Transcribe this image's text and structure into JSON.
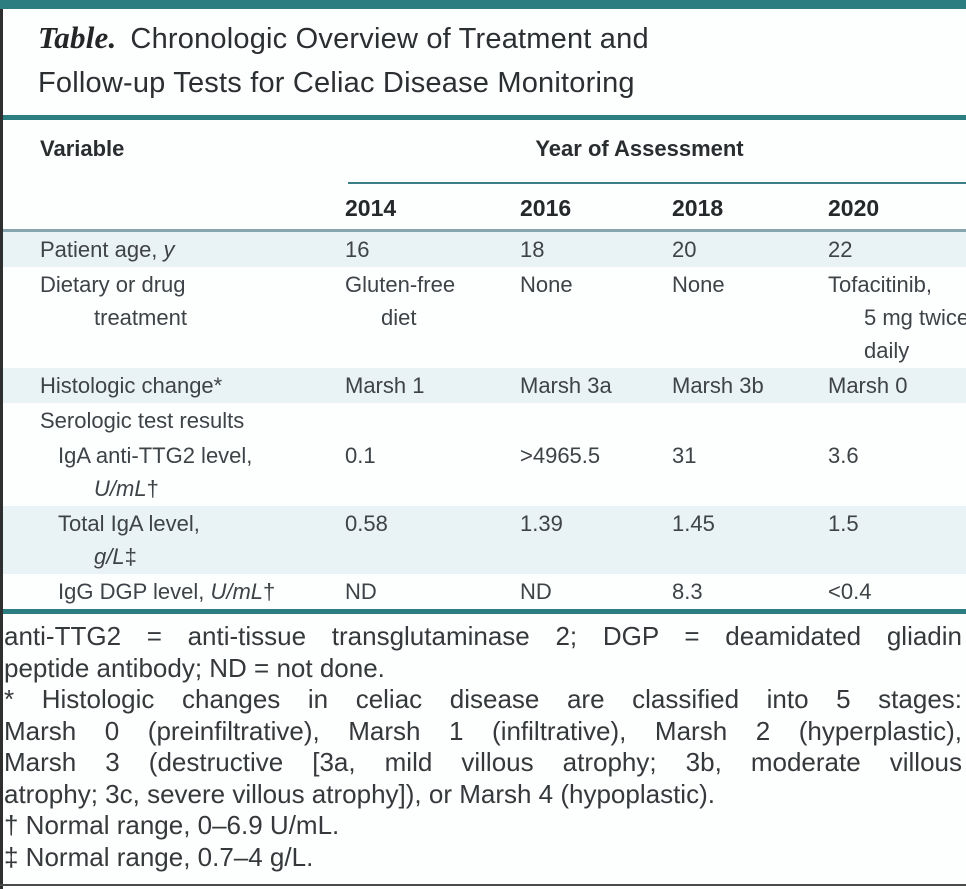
{
  "title": {
    "prefix": "Table.",
    "line1": "Chronologic Overview of Treatment and",
    "line2": "Follow-up Tests for Celiac Disease Monitoring"
  },
  "table": {
    "header": {
      "variable": "Variable",
      "year_group": "Year of Assessment",
      "years": [
        "2014",
        "2016",
        "2018",
        "2020"
      ]
    },
    "rows": [
      {
        "shaded": true,
        "label": [
          {
            "parts": [
              {
                "t": "Patient age, "
              },
              {
                "t": "y",
                "it": true
              }
            ],
            "ind": 0
          }
        ],
        "cells": [
          [
            {
              "t": "16"
            }
          ],
          [
            {
              "t": "18"
            }
          ],
          [
            {
              "t": "20"
            }
          ],
          [
            {
              "t": "22"
            }
          ]
        ]
      },
      {
        "shaded": false,
        "label": [
          {
            "t": "Dietary or drug",
            "ind": 0
          },
          {
            "t": "treatment",
            "ind": 2
          }
        ],
        "cells": [
          [
            {
              "t": "Gluten-free"
            },
            {
              "t": "diet",
              "ind": 1
            }
          ],
          [
            {
              "t": "None"
            }
          ],
          [
            {
              "t": "None"
            }
          ],
          [
            {
              "t": "Tofacitinib,"
            },
            {
              "t": "5 mg twice",
              "ind": 1
            },
            {
              "t": "daily",
              "ind": 1
            }
          ]
        ]
      },
      {
        "shaded": true,
        "label": [
          {
            "t": "Histologic change*",
            "ind": 0
          }
        ],
        "cells": [
          [
            {
              "t": "Marsh 1"
            }
          ],
          [
            {
              "t": "Marsh 3a"
            }
          ],
          [
            {
              "t": "Marsh 3b"
            }
          ],
          [
            {
              "t": "Marsh 0"
            }
          ]
        ]
      },
      {
        "shaded": false,
        "label": [
          {
            "t": "Serologic test results",
            "ind": 0
          }
        ],
        "cells": [
          [],
          [],
          [],
          []
        ]
      },
      {
        "shaded": false,
        "label": [
          {
            "t": "IgA anti-TTG2 level,",
            "ind": 1
          },
          {
            "parts": [
              {
                "t": "U/mL",
                "it": true
              },
              {
                "t": "†"
              }
            ],
            "ind": 2
          }
        ],
        "cells": [
          [
            {
              "t": "0.1"
            }
          ],
          [
            {
              "t": ">4965.5"
            }
          ],
          [
            {
              "t": "31"
            }
          ],
          [
            {
              "t": "3.6"
            }
          ]
        ]
      },
      {
        "shaded": true,
        "label": [
          {
            "t": "Total IgA level,",
            "ind": 1
          },
          {
            "parts": [
              {
                "t": "g/L",
                "it": true
              },
              {
                "t": "‡"
              }
            ],
            "ind": 2
          }
        ],
        "cells": [
          [
            {
              "t": "0.58"
            }
          ],
          [
            {
              "t": "1.39"
            }
          ],
          [
            {
              "t": "1.45"
            }
          ],
          [
            {
              "t": "1.5"
            }
          ]
        ]
      },
      {
        "shaded": false,
        "label": [
          {
            "parts": [
              {
                "t": "IgG DGP level, "
              },
              {
                "t": "U/mL",
                "it": true
              },
              {
                "t": "†"
              }
            ],
            "ind": 1
          }
        ],
        "cells": [
          [
            {
              "t": "ND"
            }
          ],
          [
            {
              "t": "ND"
            }
          ],
          [
            {
              "t": "8.3"
            }
          ],
          [
            {
              "t": "<0.4"
            }
          ]
        ]
      }
    ]
  },
  "footnotes": {
    "lines": [
      {
        "t": "anti-TTG2 = anti-tissue transglutaminase 2; DGP = deamidated gliadin",
        "just": true
      },
      {
        "t": "peptide antibody; ND = not done.",
        "just": false
      },
      {
        "t": "* Histologic changes in celiac disease are classified into 5 stages:",
        "just": true
      },
      {
        "t": "Marsh 0 (preinfiltrative), Marsh 1 (infiltrative), Marsh 2 (hyperplastic),",
        "just": true
      },
      {
        "t": "Marsh 3 (destructive [3a, mild villous atrophy; 3b, moderate villous",
        "just": true
      },
      {
        "t": "atrophy; 3c, severe villous atrophy]), or Marsh 4 (hypoplastic).",
        "just": false
      },
      {
        "t": "† Normal range, 0–6.9 U/mL.",
        "just": false
      },
      {
        "t": "‡ Normal range, 0.7–4 g/L.",
        "just": false
      }
    ]
  },
  "colors": {
    "accent_teal": "#2b7d80",
    "row_shade": "#e9f2f4",
    "header_rule": "#87a5af"
  }
}
